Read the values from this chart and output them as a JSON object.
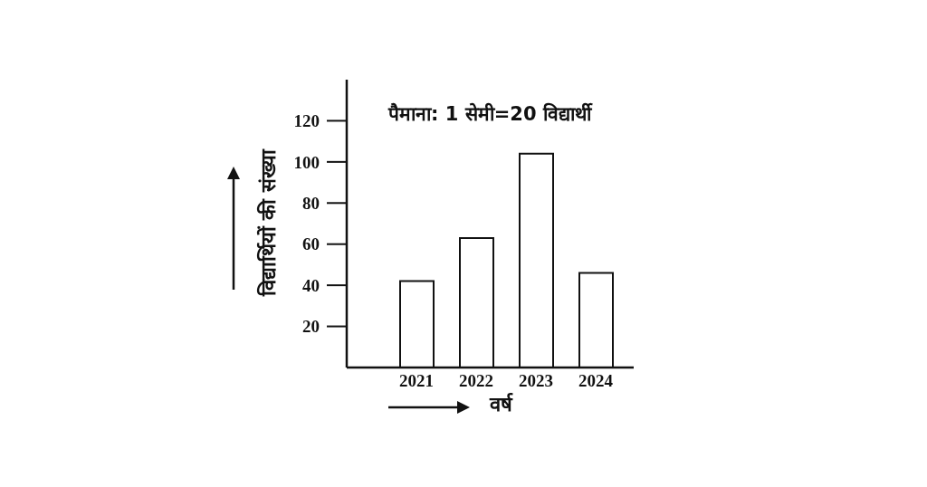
{
  "chart_data": {
    "type": "bar",
    "xlabel": "वर्ष",
    "ylabel": "विद्यार्थियों की संख्या",
    "annotations": [
      "पैमाना: 1 सेमी=20 विद्यार्थी"
    ],
    "categories": [
      "2021",
      "2022",
      "2023",
      "2024"
    ],
    "values": [
      42,
      63,
      104,
      46
    ],
    "color": "#ffffff",
    "ylim": [
      0,
      140
    ],
    "yticks": [
      20,
      40,
      60,
      80,
      100,
      120
    ]
  }
}
